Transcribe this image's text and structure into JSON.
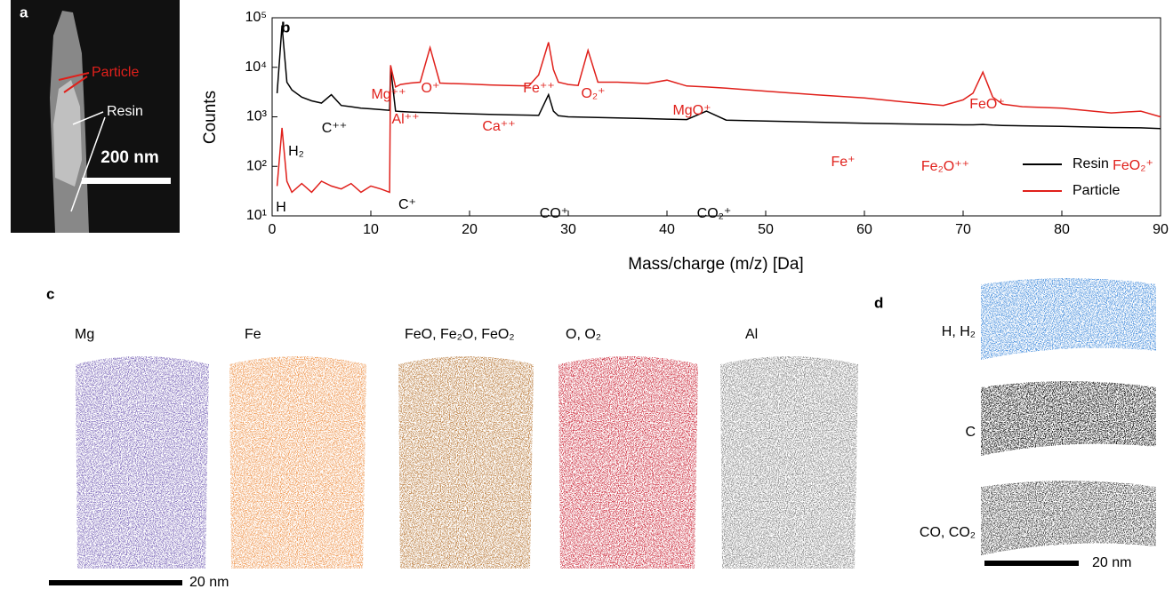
{
  "panel_a": {
    "label": "a",
    "particle_label": "Particle",
    "resin_label": "Resin",
    "scale_bar": "200 nm"
  },
  "chart_data": {
    "type": "line",
    "panel_label": "b",
    "xlabel": "Mass/charge (m/z) [Da]",
    "ylabel": "Counts",
    "x": [
      0.5,
      1,
      1.5,
      2,
      3,
      4,
      5,
      6,
      7,
      8,
      9,
      10,
      11,
      11.9,
      12,
      12.5,
      13,
      14,
      15,
      16,
      17,
      18,
      20,
      22,
      24,
      26,
      27,
      28,
      28.5,
      29,
      30,
      31,
      32,
      33,
      35,
      38,
      40,
      42,
      44,
      46,
      50,
      55,
      60,
      64,
      68,
      70,
      71,
      72,
      73,
      74,
      76,
      80,
      85,
      88,
      90
    ],
    "series": [
      {
        "name": "Resin",
        "color": "#000000",
        "values": [
          3000,
          70000,
          5000,
          3500,
          2500,
          2100,
          1900,
          2800,
          1700,
          1600,
          1500,
          1450,
          1400,
          1350,
          10000,
          1300,
          1280,
          1250,
          1230,
          1220,
          1200,
          1180,
          1150,
          1120,
          1100,
          1080,
          1070,
          2800,
          1300,
          1050,
          1000,
          990,
          980,
          970,
          950,
          920,
          900,
          880,
          1300,
          860,
          820,
          780,
          740,
          720,
          700,
          690,
          690,
          700,
          680,
          670,
          660,
          640,
          610,
          600,
          580
        ]
      },
      {
        "name": "Particle",
        "color": "#e0201b",
        "values": [
          40,
          600,
          50,
          30,
          45,
          30,
          50,
          40,
          35,
          45,
          30,
          40,
          35,
          30,
          11000,
          4000,
          4500,
          4800,
          5000,
          25000,
          4800,
          4700,
          4600,
          4400,
          4300,
          4200,
          7000,
          32000,
          9000,
          5000,
          4500,
          4300,
          22000,
          5000,
          5000,
          4700,
          5500,
          4200,
          4000,
          3800,
          3300,
          2800,
          2400,
          2000,
          1700,
          2200,
          3000,
          8000,
          2500,
          1800,
          1600,
          1500,
          1200,
          1300,
          1000
        ]
      }
    ],
    "xlim": [
      0,
      90
    ],
    "ylim": [
      10,
      100000
    ],
    "xticks": [
      0,
      10,
      20,
      30,
      40,
      50,
      60,
      70,
      80,
      90
    ],
    "yticks": [
      {
        "value": 10,
        "label": "10¹"
      },
      {
        "value": 100,
        "label": "10²"
      },
      {
        "value": 1000,
        "label": "10³"
      },
      {
        "value": 10000,
        "label": "10⁴"
      },
      {
        "value": 100000,
        "label": "10⁵"
      }
    ],
    "log_y": true,
    "legend": "lower right",
    "annotations": [
      {
        "text": "H",
        "color": "#000000"
      },
      {
        "text": "H₂",
        "color": "#000000"
      },
      {
        "text": "C⁺⁺",
        "color": "#000000"
      },
      {
        "text": "Mg⁺⁺",
        "color": "#e0201b"
      },
      {
        "text": "Al⁺⁺",
        "color": "#e0201b"
      },
      {
        "text": "O⁺",
        "color": "#e0201b"
      },
      {
        "text": "Ca⁺⁺",
        "color": "#e0201b"
      },
      {
        "text": "Fe⁺⁺",
        "color": "#e0201b"
      },
      {
        "text": "O₂⁺",
        "color": "#e0201b"
      },
      {
        "text": "MgO⁺",
        "color": "#e0201b"
      },
      {
        "text": "Fe⁺",
        "color": "#e0201b"
      },
      {
        "text": "Fe₂O⁺⁺",
        "color": "#e0201b"
      },
      {
        "text": "FeO⁺",
        "color": "#e0201b"
      },
      {
        "text": "FeO₂⁺",
        "color": "#e0201b"
      },
      {
        "text": "C⁺",
        "color": "#000000"
      },
      {
        "text": "CO⁺",
        "color": "#000000"
      },
      {
        "text": "CO₂⁺",
        "color": "#000000"
      }
    ]
  },
  "panel_c": {
    "label": "c",
    "scale_bar": "20 nm",
    "maps": [
      {
        "label": "Mg",
        "color": "#8a78c0"
      },
      {
        "label": "Fe",
        "color": "#f0a060"
      },
      {
        "label": "FeO, Fe₂O, FeO₂",
        "color": "#c08850"
      },
      {
        "label": "O, O₂",
        "color": "#d04050"
      },
      {
        "label": "Al",
        "color": "#909090"
      }
    ]
  },
  "panel_d": {
    "label": "d",
    "scale_bar": "20 nm",
    "maps": [
      {
        "label": "H, H₂",
        "color": "#5a9ae0"
      },
      {
        "label": "C",
        "color": "#202020"
      },
      {
        "label": "CO, CO₂",
        "color": "#505050"
      }
    ]
  }
}
